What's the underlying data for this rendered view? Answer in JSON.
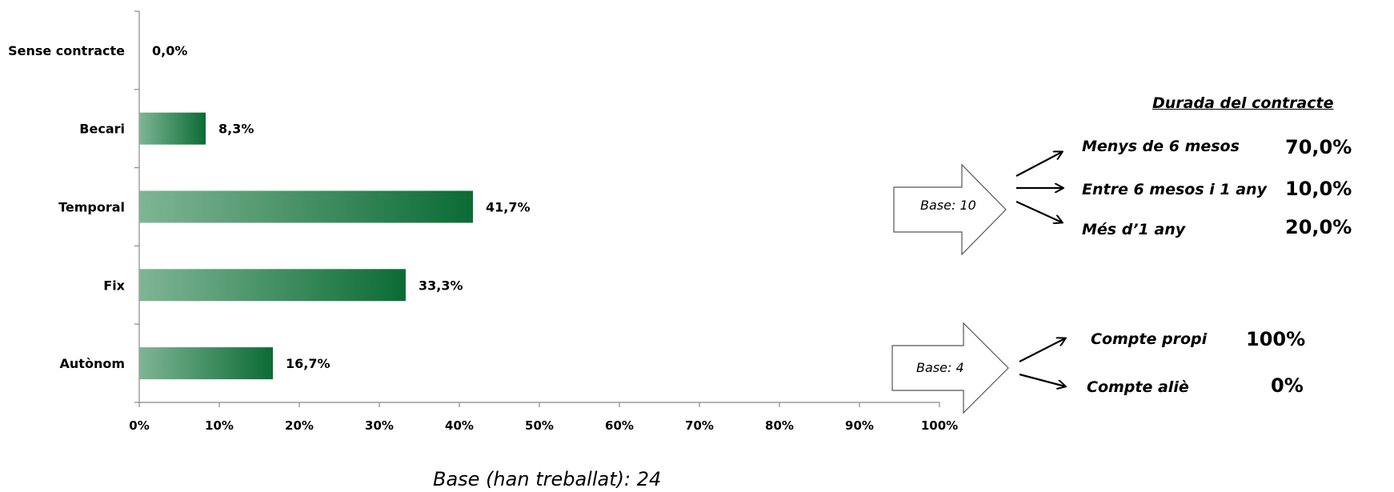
{
  "chart_data": {
    "type": "bar",
    "orientation": "horizontal",
    "categories": [
      "Sense contracte",
      "Becari",
      "Temporal",
      "Fix",
      "Autònom"
    ],
    "values": [
      0.0,
      8.3,
      41.7,
      33.3,
      16.7
    ],
    "value_labels": [
      "0,0%",
      "8,3%",
      "41,7%",
      "33,3%",
      "16,7%"
    ],
    "xlim": [
      0,
      100
    ],
    "x_ticks": [
      "0%",
      "10%",
      "20%",
      "30%",
      "40%",
      "50%",
      "60%",
      "70%",
      "80%",
      "90%",
      "100%"
    ],
    "grid": false,
    "legend": "none",
    "bar_gradient": [
      "#7fb594",
      "#0b6b35"
    ]
  },
  "base_note": "Base (han treballat): 24",
  "contract_duration": {
    "title": "Durada del contracte",
    "base_label": "Base: 10",
    "rows": [
      {
        "label": "Menys de 6 mesos",
        "value": "70,0%"
      },
      {
        "label": "Entre 6 mesos i 1 any",
        "value": "10,0%"
      },
      {
        "label": "Més d’1 any",
        "value": "20,0%"
      }
    ]
  },
  "self_employed": {
    "base_label": "Base: 4",
    "rows": [
      {
        "label": "Compte propi",
        "value": "100%"
      },
      {
        "label": "Compte aliè",
        "value": "0%"
      }
    ]
  }
}
